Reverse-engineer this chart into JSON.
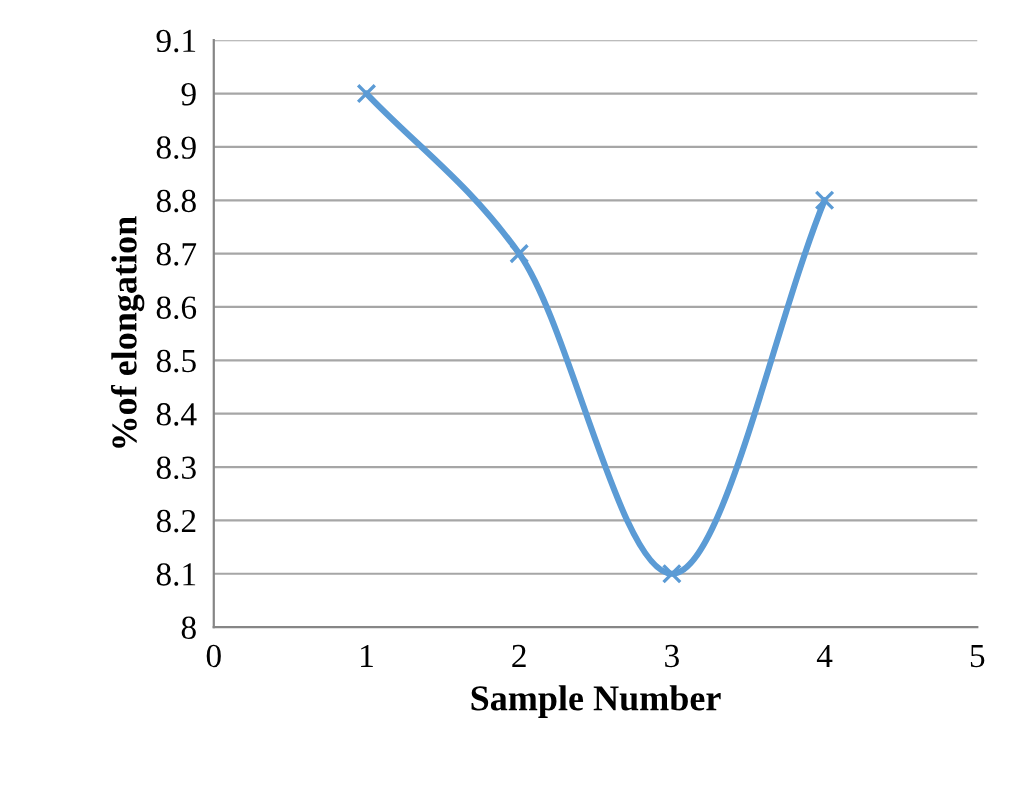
{
  "chart_data": {
    "type": "line",
    "xlabel": "Sample Number",
    "ylabel": "%of elongation",
    "x": [
      1,
      2,
      3,
      4
    ],
    "series": [
      {
        "color": "#5b9bd5",
        "values": [
          9,
          8.7,
          8.1,
          8.8
        ]
      }
    ],
    "xlim": [
      0,
      5
    ],
    "xticks": [
      0,
      1,
      2,
      3,
      4,
      5
    ],
    "ylim": [
      8,
      9.1
    ],
    "yticks": [
      8,
      8.1,
      8.2,
      8.3,
      8.4,
      8.5,
      8.6,
      8.7,
      8.8,
      8.9,
      9,
      9.1
    ],
    "grid": "y",
    "marker": "cross",
    "line_style": "solid",
    "legend": false
  }
}
